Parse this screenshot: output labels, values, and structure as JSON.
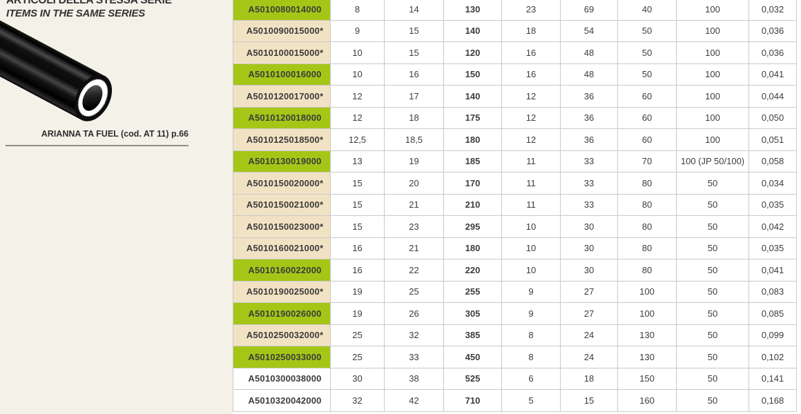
{
  "page": {
    "background": "#ffffff",
    "panel_background": "#f4f1e8",
    "border_color": "#c9c9c9",
    "text_color": "#3a3a3a"
  },
  "sidebar": {
    "series_title_italian": "ARTICOLI DELLA STESSA SERIE",
    "series_title_english": "ITEMS IN THE SAME SERIES",
    "product_image_name": "black-fuel-hose-with-white-inner-liner",
    "related_item_label": "ARIANNA TA FUEL (cod. AT 11) p.66"
  },
  "table": {
    "highlight_colors": {
      "green": "#a5c616",
      "beige": "#f2e2c4",
      "none": "#ffffff"
    },
    "rows": [
      {
        "code": "A5010080014000",
        "highlight": "green",
        "values": [
          "8",
          "14",
          "130",
          "23",
          "69",
          "40",
          "100",
          "0,032"
        ]
      },
      {
        "code": "A5010090015000*",
        "highlight": "beige",
        "values": [
          "9",
          "15",
          "140",
          "18",
          "54",
          "50",
          "100",
          "0,036"
        ]
      },
      {
        "code": "A5010100015000*",
        "highlight": "beige",
        "values": [
          "10",
          "15",
          "120",
          "16",
          "48",
          "50",
          "100",
          "0,036"
        ]
      },
      {
        "code": "A5010100016000",
        "highlight": "green",
        "values": [
          "10",
          "16",
          "150",
          "16",
          "48",
          "50",
          "100",
          "0,041"
        ]
      },
      {
        "code": "A5010120017000*",
        "highlight": "beige",
        "values": [
          "12",
          "17",
          "140",
          "12",
          "36",
          "60",
          "100",
          "0,044"
        ]
      },
      {
        "code": "A5010120018000",
        "highlight": "green",
        "values": [
          "12",
          "18",
          "175",
          "12",
          "36",
          "60",
          "100",
          "0,050"
        ]
      },
      {
        "code": "A5010125018500*",
        "highlight": "beige",
        "values": [
          "12,5",
          "18,5",
          "180",
          "12",
          "36",
          "60",
          "100",
          "0,051"
        ]
      },
      {
        "code": "A5010130019000",
        "highlight": "green",
        "values": [
          "13",
          "19",
          "185",
          "11",
          "33",
          "70",
          "100 (JP 50/100)",
          "0,058"
        ]
      },
      {
        "code": "A5010150020000*",
        "highlight": "beige",
        "values": [
          "15",
          "20",
          "170",
          "11",
          "33",
          "80",
          "50",
          "0,034"
        ]
      },
      {
        "code": "A5010150021000*",
        "highlight": "beige",
        "values": [
          "15",
          "21",
          "210",
          "11",
          "33",
          "80",
          "50",
          "0,035"
        ]
      },
      {
        "code": "A5010150023000*",
        "highlight": "beige",
        "values": [
          "15",
          "23",
          "295",
          "10",
          "30",
          "80",
          "50",
          "0,042"
        ]
      },
      {
        "code": "A5010160021000*",
        "highlight": "beige",
        "values": [
          "16",
          "21",
          "180",
          "10",
          "30",
          "80",
          "50",
          "0,035"
        ]
      },
      {
        "code": "A5010160022000",
        "highlight": "green",
        "values": [
          "16",
          "22",
          "220",
          "10",
          "30",
          "80",
          "50",
          "0,041"
        ]
      },
      {
        "code": "A5010190025000*",
        "highlight": "beige",
        "values": [
          "19",
          "25",
          "255",
          "9",
          "27",
          "100",
          "50",
          "0,083"
        ]
      },
      {
        "code": "A5010190026000",
        "highlight": "green",
        "values": [
          "19",
          "26",
          "305",
          "9",
          "27",
          "100",
          "50",
          "0,085"
        ]
      },
      {
        "code": "A5010250032000*",
        "highlight": "beige",
        "values": [
          "25",
          "32",
          "385",
          "8",
          "24",
          "130",
          "50",
          "0,099"
        ]
      },
      {
        "code": "A5010250033000",
        "highlight": "green",
        "values": [
          "25",
          "33",
          "450",
          "8",
          "24",
          "130",
          "50",
          "0,102"
        ]
      },
      {
        "code": "A5010300038000",
        "highlight": "none",
        "values": [
          "30",
          "38",
          "525",
          "6",
          "18",
          "150",
          "50",
          "0,141"
        ]
      },
      {
        "code": "A5010320042000",
        "highlight": "none",
        "values": [
          "32",
          "42",
          "710",
          "5",
          "15",
          "160",
          "50",
          "0,168"
        ]
      }
    ]
  }
}
